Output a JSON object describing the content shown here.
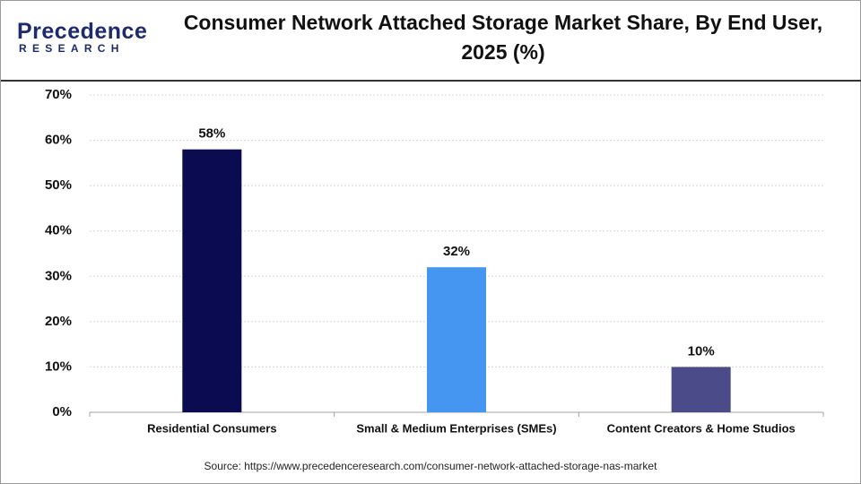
{
  "logo": {
    "name": "Precedence",
    "tagline": "RESEARCH"
  },
  "chart_data": {
    "type": "bar",
    "title": "Consumer Network Attached Storage Market Share, By End User, 2025 (%)",
    "categories": [
      "Residential Consumers",
      "Small & Medium Enterprises (SMEs)",
      "Content Creators & Home Studios"
    ],
    "values": [
      58,
      32,
      10
    ],
    "value_labels": [
      "58%",
      "32%",
      "10%"
    ],
    "colors": [
      "#0b0b52",
      "#4596f0",
      "#4a4b88"
    ],
    "ylim": [
      0,
      70
    ],
    "yticks": [
      {
        "value": 0,
        "label": "0%"
      },
      {
        "value": 10,
        "label": "10%"
      },
      {
        "value": 20,
        "label": "20%"
      },
      {
        "value": 30,
        "label": "30%"
      },
      {
        "value": 40,
        "label": "40%"
      },
      {
        "value": 50,
        "label": "50%"
      },
      {
        "value": 60,
        "label": "60%"
      },
      {
        "value": 70,
        "label": "70%"
      }
    ],
    "grid": true,
    "source": "Source: https://www.precedenceresearch.com/consumer-network-attached-storage-nas-market"
  }
}
